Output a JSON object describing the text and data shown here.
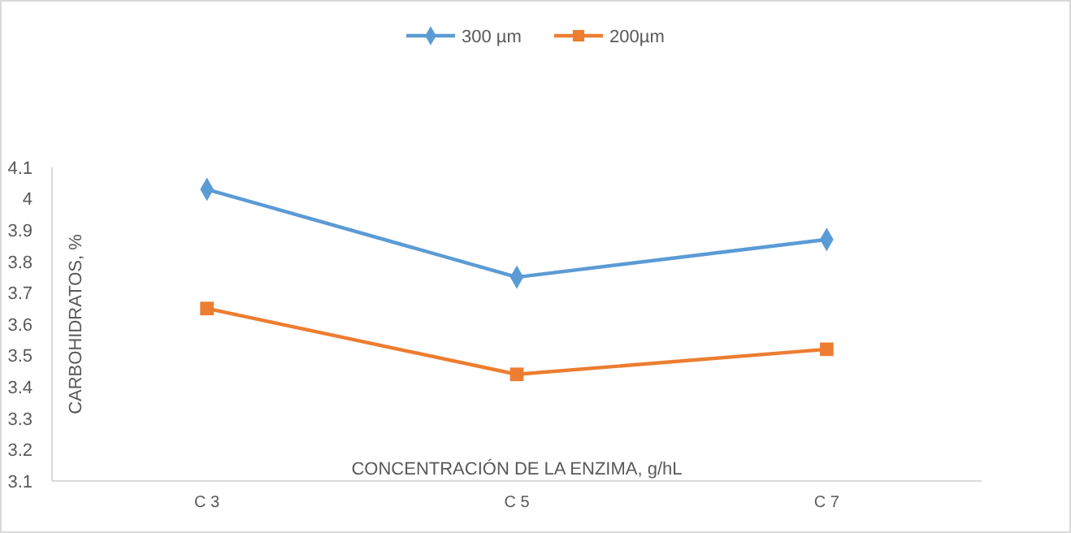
{
  "chart_data": {
    "type": "line",
    "xlabel": "CONCENTRACIÓN DE LA ENZIMA, g/hL",
    "ylabel": "CARBOHIDRATOS, %",
    "categories": [
      "C 3",
      "C 5",
      "C 7"
    ],
    "series": [
      {
        "name": "300 µm",
        "color": "#5b9bd5",
        "marker": "diamond",
        "values": [
          4.03,
          3.75,
          3.87
        ]
      },
      {
        "name": "200µm",
        "color": "#ed7d31",
        "marker": "square",
        "values": [
          3.65,
          3.44,
          3.52
        ]
      }
    ],
    "ylim": [
      3.1,
      4.1
    ],
    "yticks": [
      3.1,
      3.2,
      3.3,
      3.4,
      3.5,
      3.6,
      3.7,
      3.8,
      3.9,
      4,
      4.1
    ],
    "grid": false,
    "legend": "top",
    "line_style": "solid"
  }
}
